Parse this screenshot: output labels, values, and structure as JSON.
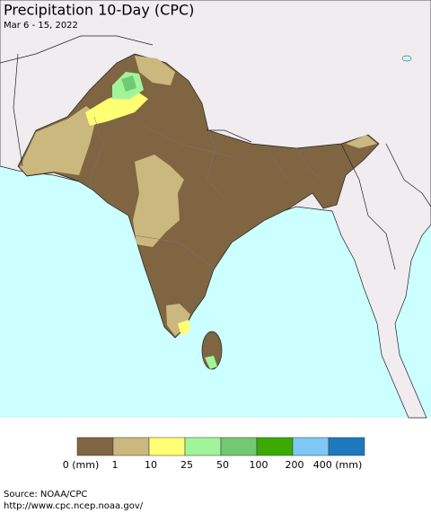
{
  "title": "Precipitation 10-Day (CPC)",
  "subtitle": "Mar 6 - 15, 2022",
  "legend": {
    "labels": [
      "0 (mm)",
      "1",
      "10",
      "25",
      "50",
      "100",
      "200",
      "400 (mm)"
    ],
    "colors": [
      "#7f6542",
      "#cbb87e",
      "#ffff73",
      "#a0f59a",
      "#73c873",
      "#3aaa00",
      "#7ec8f5",
      "#1e78be"
    ]
  },
  "source": [
    "Source: NOAA/CPC",
    "http://www.cpc.ncep.noaa.gov/"
  ]
}
